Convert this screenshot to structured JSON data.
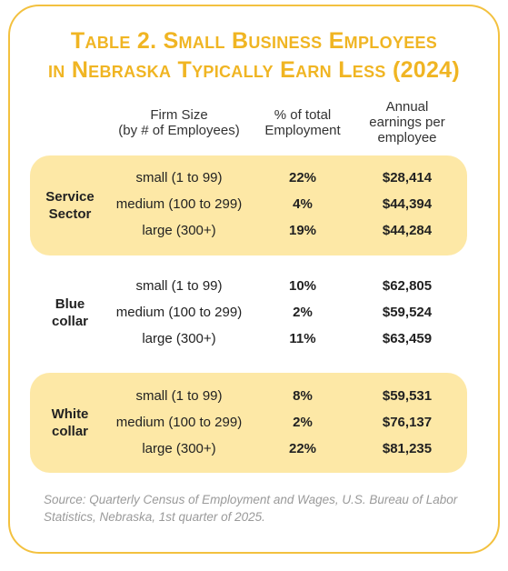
{
  "title": {
    "line1": "Table 2. Small Business Employees",
    "line2": "in Nebraska Typically Earn Less (2024)"
  },
  "headers": {
    "firm_size": [
      "Firm Size",
      "(by # of Employees)"
    ],
    "pct_total": [
      "% of total",
      "Employment"
    ],
    "annual_earnings": [
      "Annual",
      "earnings per",
      "employee"
    ]
  },
  "groups": [
    {
      "label": [
        "Service",
        "Sector"
      ],
      "highlighted": true,
      "rows": [
        {
          "size": "small (1 to 99)",
          "pct": "22%",
          "earnings": "$28,414"
        },
        {
          "size": "medium (100 to 299)",
          "pct": "4%",
          "earnings": "$44,394"
        },
        {
          "size": "large (300+)",
          "pct": "19%",
          "earnings": "$44,284"
        }
      ]
    },
    {
      "label": [
        "Blue",
        "collar"
      ],
      "highlighted": false,
      "rows": [
        {
          "size": "small (1 to 99)",
          "pct": "10%",
          "earnings": "$62,805"
        },
        {
          "size": "medium (100 to 299)",
          "pct": "2%",
          "earnings": "$59,524"
        },
        {
          "size": "large (300+)",
          "pct": "11%",
          "earnings": "$63,459"
        }
      ]
    },
    {
      "label": [
        "White",
        "collar"
      ],
      "highlighted": true,
      "rows": [
        {
          "size": "small (1 to 99)",
          "pct": "8%",
          "earnings": "$59,531"
        },
        {
          "size": "medium (100 to 299)",
          "pct": "2%",
          "earnings": "$76,137"
        },
        {
          "size": "large (300+)",
          "pct": "22%",
          "earnings": "$81,235"
        }
      ]
    }
  ],
  "source": "Source: Quarterly Census of Employment and Wages, U.S. Bureau of Labor Statistics, Nebraska, 1st quarter of 2025.",
  "colors": {
    "accent": "#f0b523",
    "border": "#f3c13f",
    "band": "#fde8a6",
    "source_text": "#9a9a9a"
  }
}
